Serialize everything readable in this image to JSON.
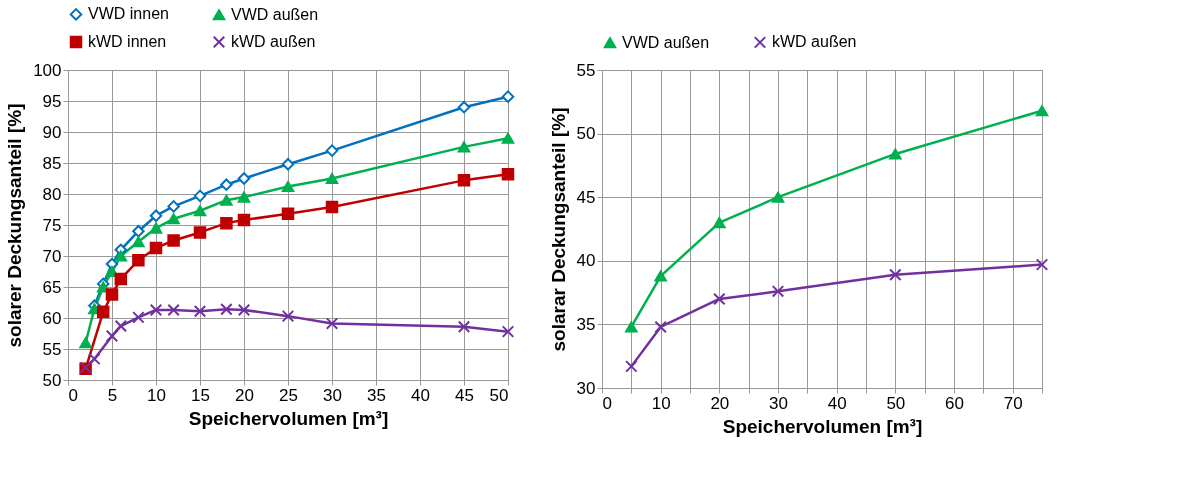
{
  "chart_data": [
    {
      "type": "line",
      "xlabel": "Speichervolumen [m³]",
      "ylabel": "solarer Deckungsanteil [%]",
      "xlim": [
        0,
        50
      ],
      "ylim": [
        50,
        100
      ],
      "xticks": [
        0,
        5,
        10,
        15,
        20,
        25,
        30,
        35,
        40,
        45,
        50
      ],
      "yticks": [
        50,
        55,
        60,
        65,
        70,
        75,
        80,
        85,
        90,
        95,
        100
      ],
      "grid": true,
      "legend": "top",
      "line_style": "solid",
      "series": [
        {
          "name": "VWD innen",
          "color": "#0070c0",
          "marker": "diamond",
          "x": [
            3,
            4,
            5,
            6,
            8,
            10,
            12,
            15,
            18,
            20,
            25,
            30,
            45,
            50
          ],
          "values": [
            62,
            65.5,
            68.7,
            71,
            74,
            76.5,
            78,
            79.7,
            81.5,
            82.5,
            84.8,
            87,
            94,
            95.7
          ]
        },
        {
          "name": "VWD außen",
          "color": "#00b050",
          "marker": "triangle",
          "x": [
            2,
            3,
            4,
            5,
            6,
            8,
            10,
            12,
            15,
            18,
            20,
            25,
            30,
            45,
            50
          ],
          "values": [
            56,
            61.5,
            65,
            67.5,
            70,
            72.3,
            74.5,
            76,
            77.3,
            79,
            79.5,
            81.2,
            82.5,
            87.6,
            89
          ]
        },
        {
          "name": "kWD innen",
          "color": "#c00000",
          "marker": "square",
          "x": [
            2,
            4,
            5,
            6,
            8,
            10,
            12,
            15,
            18,
            20,
            25,
            30,
            45,
            50
          ],
          "values": [
            51.8,
            61,
            63.8,
            66.3,
            69.3,
            71.3,
            72.5,
            73.8,
            75.3,
            75.8,
            76.8,
            77.9,
            82.2,
            83.2
          ]
        },
        {
          "name": "kWD außen",
          "color": "#7030a0",
          "marker": "cross",
          "x": [
            2,
            3,
            5,
            6,
            8,
            10,
            12,
            15,
            18,
            20,
            25,
            30,
            45,
            50
          ],
          "values": [
            52,
            53.4,
            57.1,
            58.7,
            60.1,
            61.3,
            61.3,
            61.1,
            61.4,
            61.3,
            60.3,
            59.1,
            58.6,
            57.8
          ]
        }
      ]
    },
    {
      "type": "line",
      "xlabel": "Speichervolumen [m³]",
      "ylabel": "solarar Deckungsanteil [%]",
      "xlim": [
        0,
        75
      ],
      "ylim": [
        30,
        55
      ],
      "xticks": [
        0,
        {
          "value": 5,
          "label": null
        },
        10,
        {
          "value": 15,
          "label": null
        },
        20,
        {
          "value": 25,
          "label": null
        },
        30,
        {
          "value": 35,
          "label": null
        },
        40,
        {
          "value": 45,
          "label": null
        },
        50,
        {
          "value": 55,
          "label": null
        },
        60,
        {
          "value": 65,
          "label": null
        },
        70,
        {
          "value": 75,
          "label": null
        }
      ],
      "yticks": [
        30,
        35,
        40,
        45,
        50,
        55
      ],
      "grid": true,
      "legend": "top",
      "line_style": "solid",
      "series": [
        {
          "name": "VWD außen",
          "color": "#00b050",
          "marker": "triangle",
          "x": [
            5,
            10,
            20,
            30,
            50,
            75
          ],
          "values": [
            34.8,
            38.8,
            43,
            45,
            48.4,
            51.8
          ]
        },
        {
          "name": "kWD außen",
          "color": "#7030a0",
          "marker": "cross",
          "x": [
            5,
            10,
            20,
            30,
            50,
            75
          ],
          "values": [
            31.7,
            34.8,
            37,
            37.6,
            38.9,
            39.7
          ]
        }
      ]
    }
  ]
}
